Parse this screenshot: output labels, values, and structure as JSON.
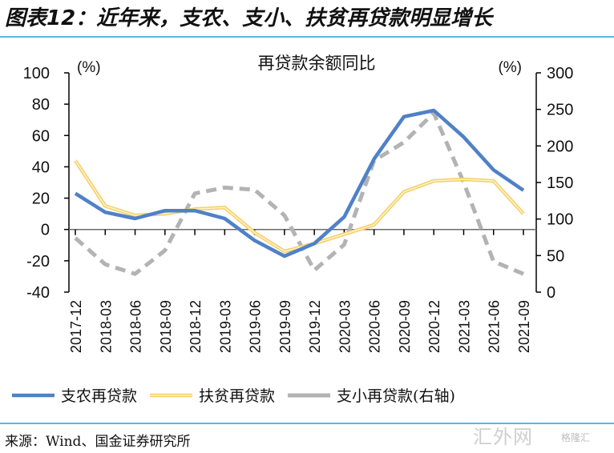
{
  "figure": {
    "title": "图表12：近年来，支农、支小、扶贫再贷款明显增长",
    "source": "来源：Wind、国金证券研究所",
    "watermark": "汇外网",
    "watermark_sub": "格隆汇"
  },
  "chart_data": {
    "type": "line",
    "title": "再贷款余额同比",
    "left_unit": "(%)",
    "right_unit": "(%)",
    "categories": [
      "2017-12",
      "2018-03",
      "2018-06",
      "2018-09",
      "2018-12",
      "2019-03",
      "2019-06",
      "2019-09",
      "2019-12",
      "2020-03",
      "2020-06",
      "2020-09",
      "2020-12",
      "2021-03",
      "2021-06",
      "2021-09"
    ],
    "y_left": {
      "min": -40,
      "max": 100,
      "ticks": [
        -40,
        -20,
        0,
        20,
        40,
        60,
        80,
        100
      ]
    },
    "y_right": {
      "min": 0,
      "max": 300,
      "ticks": [
        0,
        50,
        100,
        150,
        200,
        250,
        300
      ]
    },
    "grid": false,
    "legend_position": "bottom",
    "series": [
      {
        "name": "支农再贷款",
        "axis": "left",
        "color": "#4f81c7",
        "style": "solid",
        "values": [
          23,
          11,
          7,
          12,
          12,
          7,
          -7,
          -17,
          -9,
          8,
          45,
          72,
          76,
          59,
          38,
          25
        ]
      },
      {
        "name": "扶贫再贷款",
        "axis": "left",
        "color": "#f5cf6b",
        "style": "double",
        "values": [
          44,
          15,
          9,
          10,
          13,
          14,
          -2,
          -14,
          -9,
          -3,
          3,
          24,
          31,
          32,
          31,
          10
        ]
      },
      {
        "name": "支小再贷款(右轴)",
        "axis": "right",
        "color": "#b3b3b3",
        "style": "dashed",
        "values": [
          74,
          38,
          25,
          57,
          135,
          143,
          140,
          105,
          30,
          65,
          180,
          205,
          245,
          150,
          42,
          25
        ]
      }
    ]
  }
}
